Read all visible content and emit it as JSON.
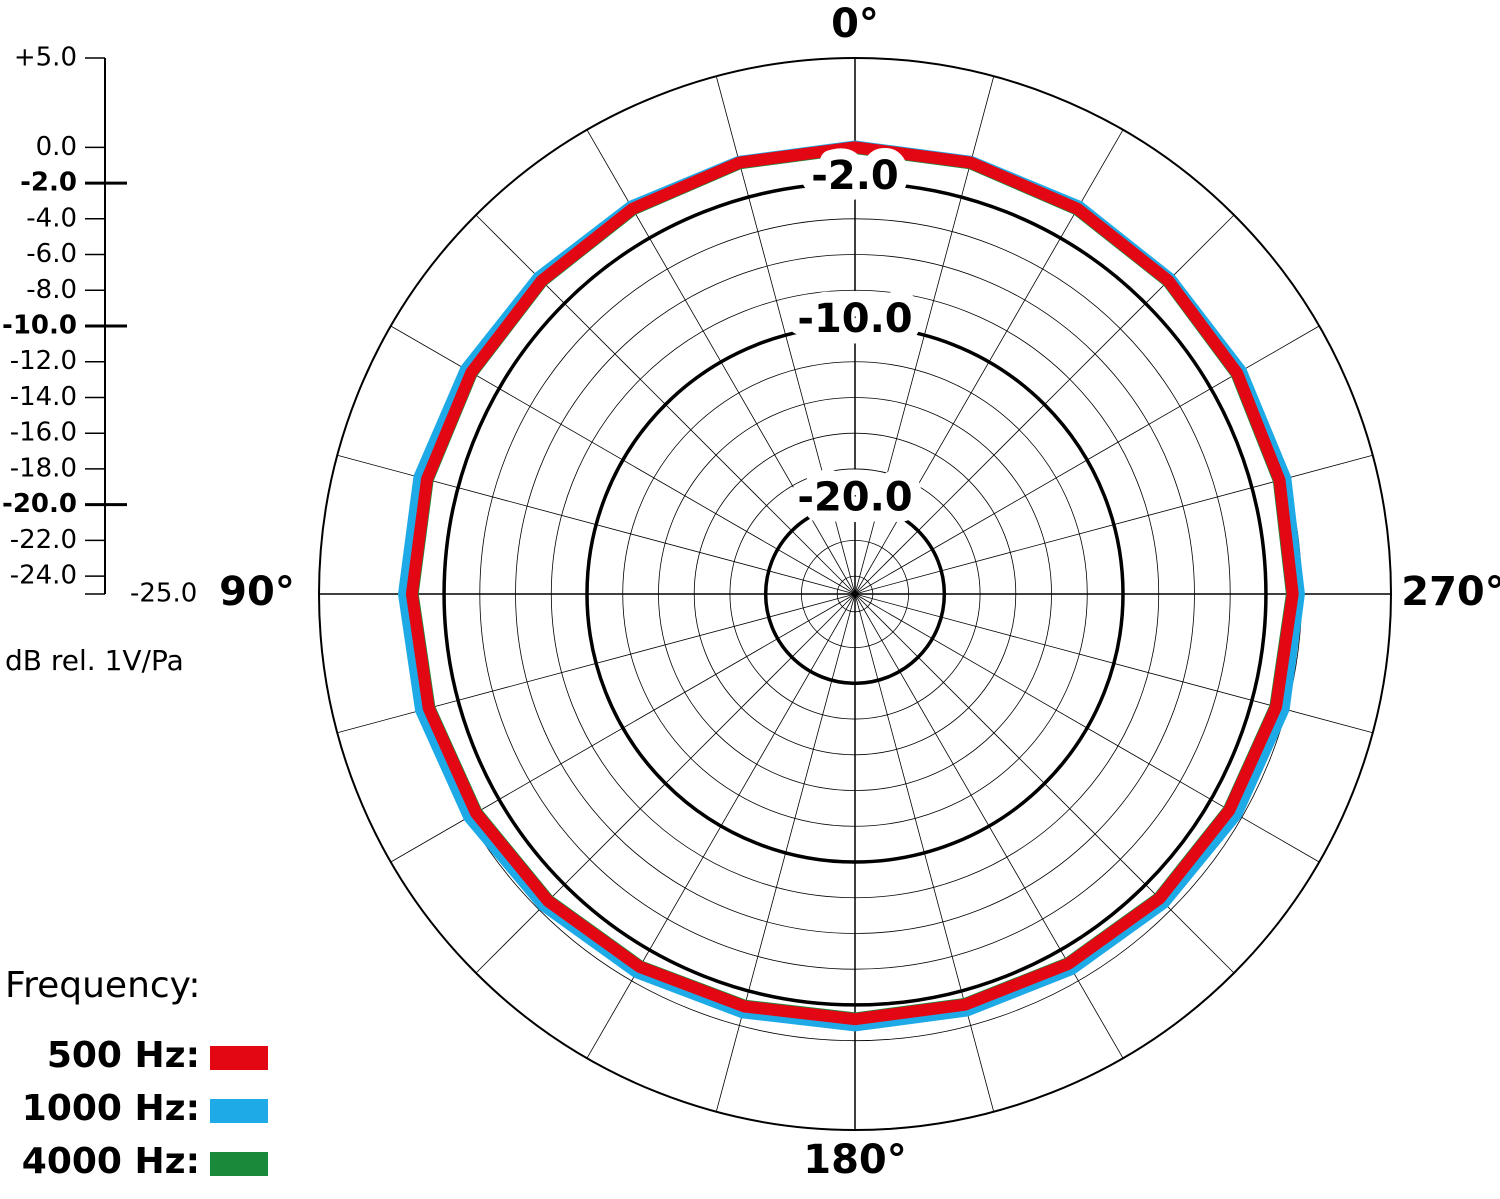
{
  "chart_data": {
    "type": "polar",
    "y_label": "dB rel. 1V/Pa",
    "legend_title": "Frequency:",
    "x": [
      0,
      15,
      30,
      45,
      60,
      75,
      90,
      105,
      120,
      135,
      150,
      165,
      180,
      195,
      210,
      225,
      240,
      255,
      270,
      285,
      300,
      315,
      330,
      345
    ],
    "xticks": [
      {
        "value": 0,
        "label": "0°"
      },
      {
        "value": 90,
        "label": "90°"
      },
      {
        "value": 180,
        "label": "180°"
      },
      {
        "value": 270,
        "label": "270°"
      }
    ],
    "ylim": [
      -25,
      5
    ],
    "yticks": [
      {
        "value": 5,
        "label": "+5.0"
      },
      {
        "value": 0,
        "label": "0.0"
      },
      {
        "value": -2,
        "label": "-2.0"
      },
      {
        "value": -4,
        "label": "-4.0"
      },
      {
        "value": -6,
        "label": "-6.0"
      },
      {
        "value": -8,
        "label": "-8.0"
      },
      {
        "value": -10,
        "label": "-10.0"
      },
      {
        "value": -12,
        "label": "-12.0"
      },
      {
        "value": -14,
        "label": "-14.0"
      },
      {
        "value": -16,
        "label": "-16.0"
      },
      {
        "value": -18,
        "label": "-18.0"
      },
      {
        "value": -20,
        "label": "-20.0"
      },
      {
        "value": -22,
        "label": "-22.0"
      },
      {
        "value": -24,
        "label": "-24.0"
      },
      {
        "value": -25,
        "label": "-25.0"
      }
    ],
    "rings": [
      {
        "value": -2,
        "label": "-2.0"
      },
      {
        "value": -10,
        "label": "-10.0"
      },
      {
        "value": -20,
        "label": "-20.0"
      }
    ],
    "series": [
      {
        "name": "500 Hz:",
        "color": "#e30613",
        "values": [
          0.0,
          0.0,
          -0.1,
          -0.2,
          -0.2,
          -0.2,
          -0.2,
          -0.3,
          -0.5,
          -0.7,
          -0.9,
          -1.1,
          -1.2,
          -1.2,
          -1.1,
          -0.9,
          -0.8,
          -0.6,
          -0.5,
          -0.4,
          -0.3,
          -0.2,
          -0.1,
          0.0
        ]
      },
      {
        "name": "1000 Hz:",
        "color": "#1eaae6",
        "values": [
          0.1,
          0.1,
          0.1,
          0.1,
          0.2,
          0.3,
          0.3,
          0.2,
          0.0,
          -0.3,
          -0.5,
          -0.7,
          -0.8,
          -0.8,
          -0.7,
          -0.5,
          -0.3,
          -0.1,
          -0.1,
          0.0,
          0.0,
          0.0,
          0.1,
          0.1
        ]
      },
      {
        "name": "4000 Hz:",
        "color": "#1a8a3a",
        "values": [
          -0.1,
          -0.1,
          -0.2,
          -0.3,
          -0.3,
          -0.3,
          -0.3,
          -0.4,
          -0.6,
          -0.8,
          -1.0,
          -1.2,
          -1.3,
          -1.3,
          -1.2,
          -1.0,
          -0.9,
          -0.7,
          -0.6,
          -0.5,
          -0.4,
          -0.3,
          -0.2,
          -0.1
        ]
      }
    ]
  }
}
